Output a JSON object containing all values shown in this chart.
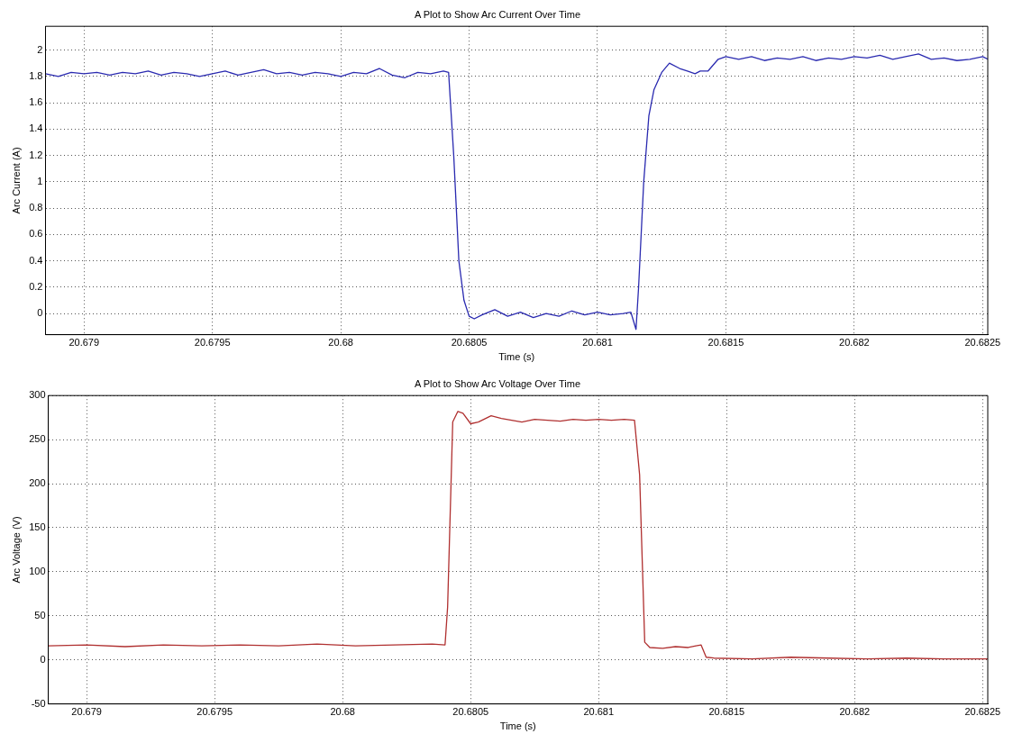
{
  "chart_data": [
    {
      "type": "line",
      "title": "A Plot to Show Arc Current Over Time",
      "xlabel": "Time (s)",
      "ylabel": "Arc Current (A)",
      "x": [
        20.67885,
        20.6789,
        20.67895,
        20.679,
        20.67905,
        20.6791,
        20.67915,
        20.6792,
        20.67925,
        20.6793,
        20.67935,
        20.6794,
        20.67945,
        20.6795,
        20.67955,
        20.6796,
        20.67965,
        20.6797,
        20.67975,
        20.6798,
        20.67985,
        20.6799,
        20.67995,
        20.68,
        20.68005,
        20.6801,
        20.68015,
        20.6802,
        20.68025,
        20.6803,
        20.68035,
        20.6804,
        20.68042,
        20.68044,
        20.68046,
        20.68048,
        20.6805,
        20.68052,
        20.68055,
        20.6806,
        20.68065,
        20.6807,
        20.68075,
        20.6808,
        20.68085,
        20.6809,
        20.68095,
        20.681,
        20.68105,
        20.6811,
        20.68113,
        20.68115,
        20.68116,
        20.68118,
        20.6812,
        20.68122,
        20.68125,
        20.68128,
        20.68132,
        20.68135,
        20.68138,
        20.6814,
        20.68143,
        20.68147,
        20.6815,
        20.68155,
        20.6816,
        20.68165,
        20.6817,
        20.68175,
        20.6818,
        20.68185,
        20.6819,
        20.68195,
        20.682,
        20.68205,
        20.6821,
        20.68215,
        20.6822,
        20.68225,
        20.6823,
        20.68235,
        20.6824,
        20.68245,
        20.6825,
        20.68252
      ],
      "series": [
        {
          "color": "#2a2ab0",
          "values": [
            1.82,
            1.8,
            1.83,
            1.82,
            1.83,
            1.81,
            1.83,
            1.82,
            1.84,
            1.81,
            1.83,
            1.82,
            1.8,
            1.82,
            1.84,
            1.81,
            1.83,
            1.85,
            1.82,
            1.83,
            1.81,
            1.83,
            1.82,
            1.8,
            1.83,
            1.82,
            1.86,
            1.81,
            1.79,
            1.83,
            1.82,
            1.84,
            1.83,
            1.2,
            0.4,
            0.1,
            -0.02,
            -0.04,
            -0.01,
            0.03,
            -0.02,
            0.01,
            -0.03,
            0,
            -0.02,
            0.02,
            -0.01,
            0.01,
            -0.01,
            0,
            0.01,
            -0.12,
            0.2,
            1,
            1.5,
            1.7,
            1.83,
            1.9,
            1.86,
            1.84,
            1.82,
            1.84,
            1.84,
            1.93,
            1.95,
            1.93,
            1.95,
            1.92,
            1.94,
            1.93,
            1.95,
            1.92,
            1.94,
            1.93,
            1.95,
            1.94,
            1.96,
            1.93,
            1.95,
            1.97,
            1.93,
            1.94,
            1.92,
            1.93,
            1.95,
            1.93
          ]
        }
      ],
      "xlim": [
        20.67885,
        20.68252
      ],
      "xticks": [
        20.679,
        20.6795,
        20.68,
        20.6805,
        20.681,
        20.6815,
        20.682,
        20.6825
      ],
      "ylim": [
        -0.16,
        2.18
      ],
      "yticks": [
        0,
        0.2,
        0.4,
        0.6,
        0.8,
        1,
        1.2,
        1.4,
        1.6,
        1.8,
        2
      ],
      "grid": true,
      "line_style": "solid"
    },
    {
      "type": "line",
      "title": "A Plot to Show Arc Voltage Over Time",
      "xlabel": "Time (s)",
      "ylabel": "Arc Voltage (V)",
      "x": [
        20.67885,
        20.679,
        20.67915,
        20.6793,
        20.67945,
        20.6796,
        20.67975,
        20.6799,
        20.68005,
        20.6802,
        20.68035,
        20.6804,
        20.68041,
        20.68043,
        20.68045,
        20.68047,
        20.6805,
        20.68053,
        20.68058,
        20.68062,
        20.68066,
        20.6807,
        20.68075,
        20.6808,
        20.68085,
        20.6809,
        20.68095,
        20.681,
        20.68105,
        20.6811,
        20.68114,
        20.68116,
        20.68118,
        20.6812,
        20.68125,
        20.6813,
        20.68135,
        20.68138,
        20.6814,
        20.68142,
        20.68145,
        20.6816,
        20.68175,
        20.6819,
        20.68205,
        20.6822,
        20.68235,
        20.68252
      ],
      "series": [
        {
          "color": "#b03030",
          "values": [
            16,
            17,
            15,
            17,
            16,
            17,
            16,
            18,
            16,
            17,
            18,
            17,
            60,
            270,
            282,
            280,
            268,
            270,
            277,
            274,
            272,
            270,
            273,
            272,
            271,
            273,
            272,
            273,
            272,
            273,
            272,
            210,
            20,
            14,
            13,
            15,
            14,
            16,
            17,
            3,
            2,
            1,
            3,
            2,
            1,
            2,
            1,
            1
          ]
        }
      ],
      "xlim": [
        20.67885,
        20.68252
      ],
      "xticks": [
        20.679,
        20.6795,
        20.68,
        20.6805,
        20.681,
        20.6815,
        20.682,
        20.6825
      ],
      "ylim": [
        -50,
        300
      ],
      "yticks": [
        -50,
        0,
        50,
        100,
        150,
        200,
        250,
        300
      ],
      "grid": true,
      "line_style": "solid"
    }
  ]
}
